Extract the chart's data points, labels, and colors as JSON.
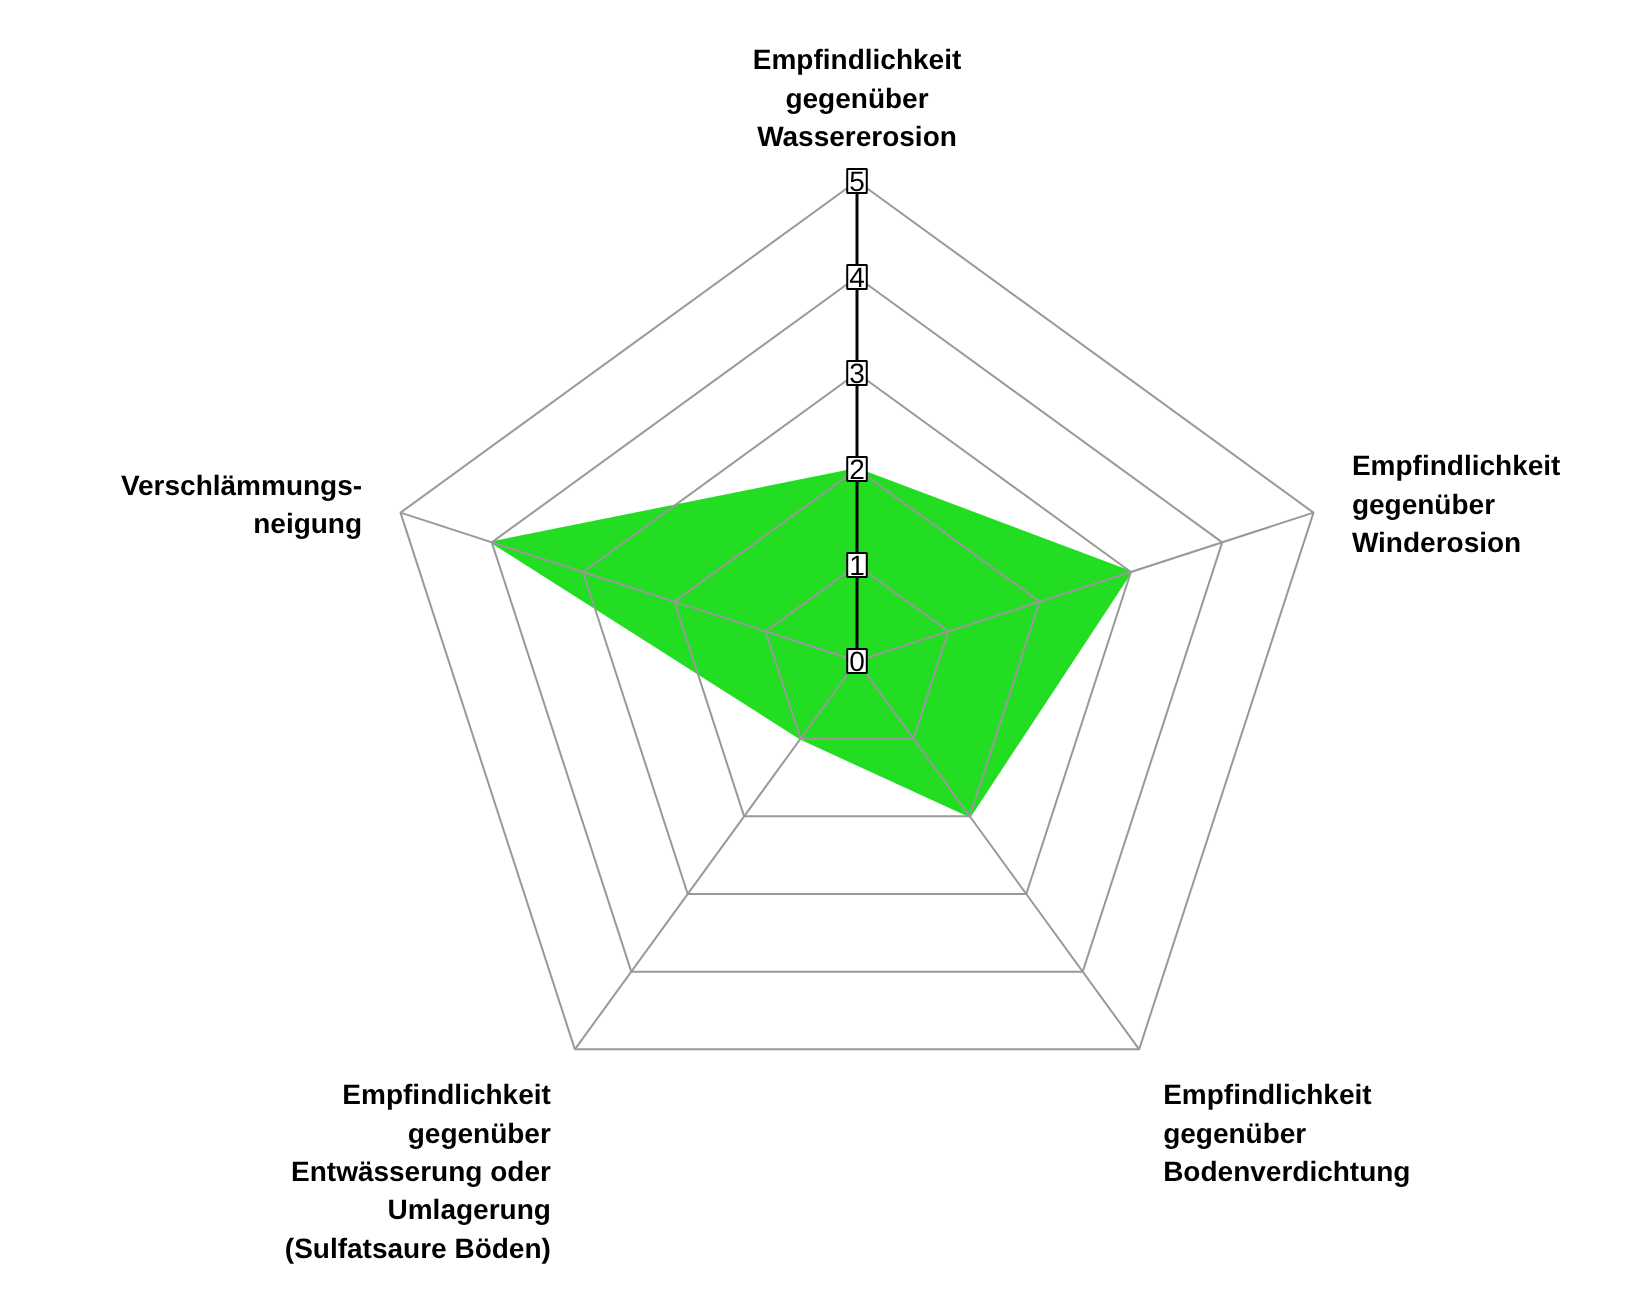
{
  "chart_data": {
    "type": "radar",
    "categories": [
      "Empfindlichkeit\ngegenüber\nWassererosion",
      "Empfindlichkeit\ngegenüber\nWinderosion",
      "Empfindlichkeit\ngegenüber\nBodenverdichtung",
      "Empfindlichkeit\ngegenüber\nEntwässerung oder\nUmlagerung\n(Sulfatsaure Böden)",
      "Verschlämmungs-\nneigung"
    ],
    "series": [
      {
        "color": "#22dd22",
        "values": [
          2,
          3,
          2,
          1,
          4
        ]
      }
    ],
    "ylim": [
      0,
      5
    ],
    "yticks": [
      0,
      1,
      2,
      3,
      4,
      5
    ]
  }
}
